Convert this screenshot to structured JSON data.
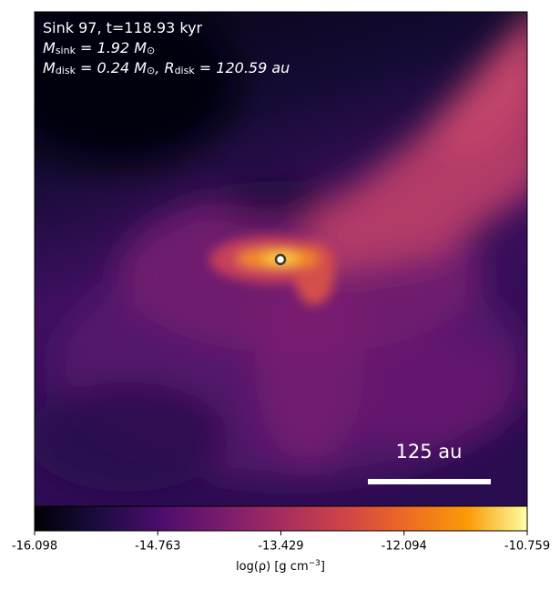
{
  "chart_data": {
    "type": "heatmap",
    "annotations": [
      [
        [
          "Sink 97, t=118.93 kyr"
        ]
      ],
      [
        [
          "M"
        ],
        [
          "sink"
        ],
        [
          " = 1.92 M"
        ],
        [
          "⊙"
        ]
      ],
      [
        [
          "M"
        ],
        [
          "disk"
        ],
        [
          " = 0.24 M"
        ],
        [
          "⊙"
        ],
        [
          ", R"
        ],
        [
          "disk"
        ],
        [
          " = 120.59 au"
        ]
      ]
    ],
    "scale_bar_label": "125 au",
    "colorbar": {
      "lim": [
        -16.098,
        -10.759
      ],
      "ticks": [
        -16.098,
        -14.763,
        -13.429,
        -12.094,
        -10.759
      ],
      "label": [
        "log(ρ) [g cm",
        "−3",
        "]"
      ]
    }
  }
}
